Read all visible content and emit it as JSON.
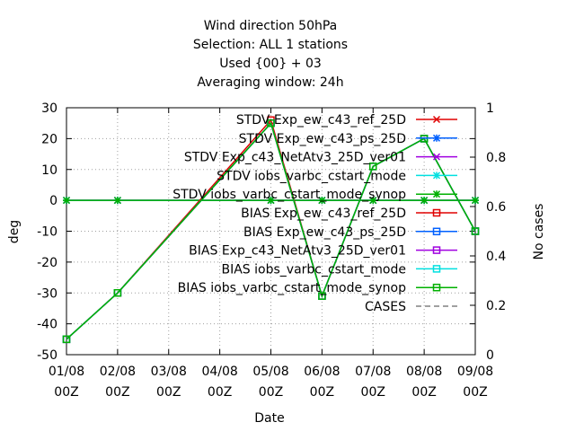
{
  "chart_data": {
    "type": "line",
    "title": [
      "Wind direction 50hPa",
      "Selection: ALL      1 stations",
      "Used {00} + 03",
      "Averaging window: 24h"
    ],
    "xlabel": "Date",
    "ylabel": "deg",
    "y2label": "No cases",
    "x": [
      "01/08 00Z",
      "02/08 00Z",
      "03/08 00Z",
      "04/08 00Z",
      "05/08 00Z",
      "06/08 00Z",
      "07/08 00Z",
      "08/08 00Z",
      "09/08 00Z"
    ],
    "x_tick_labels": [
      [
        "01/08",
        "00Z"
      ],
      [
        "02/08",
        "00Z"
      ],
      [
        "03/08",
        "00Z"
      ],
      [
        "04/08",
        "00Z"
      ],
      [
        "05/08",
        "00Z"
      ],
      [
        "06/08",
        "00Z"
      ],
      [
        "07/08",
        "00Z"
      ],
      [
        "08/08",
        "00Z"
      ],
      [
        "09/08",
        "00Z"
      ]
    ],
    "ylim": [
      -50,
      30
    ],
    "yticks": [
      -50,
      -40,
      -30,
      -20,
      -10,
      0,
      10,
      20,
      30
    ],
    "y2lim": [
      0,
      1
    ],
    "y2ticks": [
      0,
      0.2,
      0.4,
      0.6,
      0.8,
      1
    ],
    "grid": true,
    "legend_position": "top-right",
    "series": [
      {
        "name": "STDV Exp_ew_c43_ref_25D",
        "color": "#e00000",
        "marker": "x",
        "axis": "y2",
        "points": [
          [
            0,
            0.625
          ],
          [
            1,
            0.625
          ],
          [
            4,
            0.625
          ],
          [
            5,
            0.625
          ],
          [
            6,
            0.625
          ],
          [
            7,
            0.625
          ],
          [
            8,
            0.625
          ]
        ]
      },
      {
        "name": "STDV Exp_ew_c43_ps_25D",
        "color": "#0060ff",
        "marker": "asterisk",
        "axis": "y2",
        "points": [
          [
            0,
            0.625
          ],
          [
            1,
            0.625
          ],
          [
            4,
            0.625
          ],
          [
            5,
            0.625
          ],
          [
            6,
            0.625
          ],
          [
            7,
            0.625
          ],
          [
            8,
            0.625
          ]
        ]
      },
      {
        "name": "STDV Exp_c43_NetAtv3_25D_ver01",
        "color": "#a000e0",
        "marker": "x",
        "axis": "y2",
        "points": [
          [
            0,
            0.625
          ],
          [
            1,
            0.625
          ],
          [
            4,
            0.625
          ],
          [
            5,
            0.625
          ],
          [
            6,
            0.625
          ],
          [
            7,
            0.625
          ],
          [
            8,
            0.625
          ]
        ]
      },
      {
        "name": "STDV iobs_varbc_cstart_mode",
        "color": "#00e0e0",
        "marker": "asterisk",
        "axis": "y2",
        "points": [
          [
            0,
            0.625
          ],
          [
            1,
            0.625
          ],
          [
            4,
            0.625
          ],
          [
            5,
            0.625
          ],
          [
            6,
            0.625
          ],
          [
            7,
            0.625
          ],
          [
            8,
            0.625
          ]
        ]
      },
      {
        "name": "STDV iobs_varbc_cstart_mode_synop",
        "color": "#00b000",
        "marker": "asterisk",
        "axis": "y2",
        "points": [
          [
            0,
            0.625
          ],
          [
            1,
            0.625
          ],
          [
            4,
            0.625
          ],
          [
            5,
            0.625
          ],
          [
            6,
            0.625
          ],
          [
            7,
            0.625
          ],
          [
            8,
            0.625
          ]
        ]
      },
      {
        "name": "BIAS Exp_ew_c43_ref_25D",
        "color": "#e00000",
        "marker": "square",
        "axis": "y",
        "points": [
          [
            0,
            -45
          ],
          [
            1,
            -30
          ],
          [
            4,
            26
          ],
          [
            5,
            -31
          ],
          [
            6,
            11
          ],
          [
            7,
            20
          ],
          [
            8,
            -10
          ]
        ]
      },
      {
        "name": "BIAS Exp_ew_c43_ps_25D",
        "color": "#0060ff",
        "marker": "square",
        "axis": "y",
        "points": [
          [
            0,
            -45
          ],
          [
            1,
            -30
          ],
          [
            4,
            25
          ],
          [
            5,
            -31
          ],
          [
            6,
            11
          ],
          [
            7,
            20
          ],
          [
            8,
            -10
          ]
        ]
      },
      {
        "name": "BIAS Exp_c43_NetAtv3_25D_ver01",
        "color": "#a000e0",
        "marker": "square",
        "axis": "y",
        "points": [
          [
            0,
            -45
          ],
          [
            1,
            -30
          ],
          [
            4,
            25
          ],
          [
            5,
            -31
          ],
          [
            6,
            11
          ],
          [
            7,
            20
          ],
          [
            8,
            -10
          ]
        ]
      },
      {
        "name": "BIAS iobs_varbc_cstart_mode",
        "color": "#00e0e0",
        "marker": "square",
        "axis": "y",
        "points": [
          [
            0,
            -45
          ],
          [
            1,
            -30
          ],
          [
            4,
            25
          ],
          [
            5,
            -31
          ],
          [
            6,
            11
          ],
          [
            7,
            20
          ],
          [
            8,
            -10
          ]
        ]
      },
      {
        "name": "BIAS iobs_varbc_cstart_mode_synop",
        "color": "#00b000",
        "marker": "square",
        "axis": "y",
        "points": [
          [
            0,
            -45
          ],
          [
            1,
            -30
          ],
          [
            4,
            25
          ],
          [
            5,
            -31
          ],
          [
            6,
            11
          ],
          [
            7,
            20
          ],
          [
            8,
            -10
          ]
        ]
      },
      {
        "name": "CASES",
        "color": "#808080",
        "marker": "none",
        "dashed": true,
        "axis": "y2",
        "points": []
      }
    ]
  }
}
